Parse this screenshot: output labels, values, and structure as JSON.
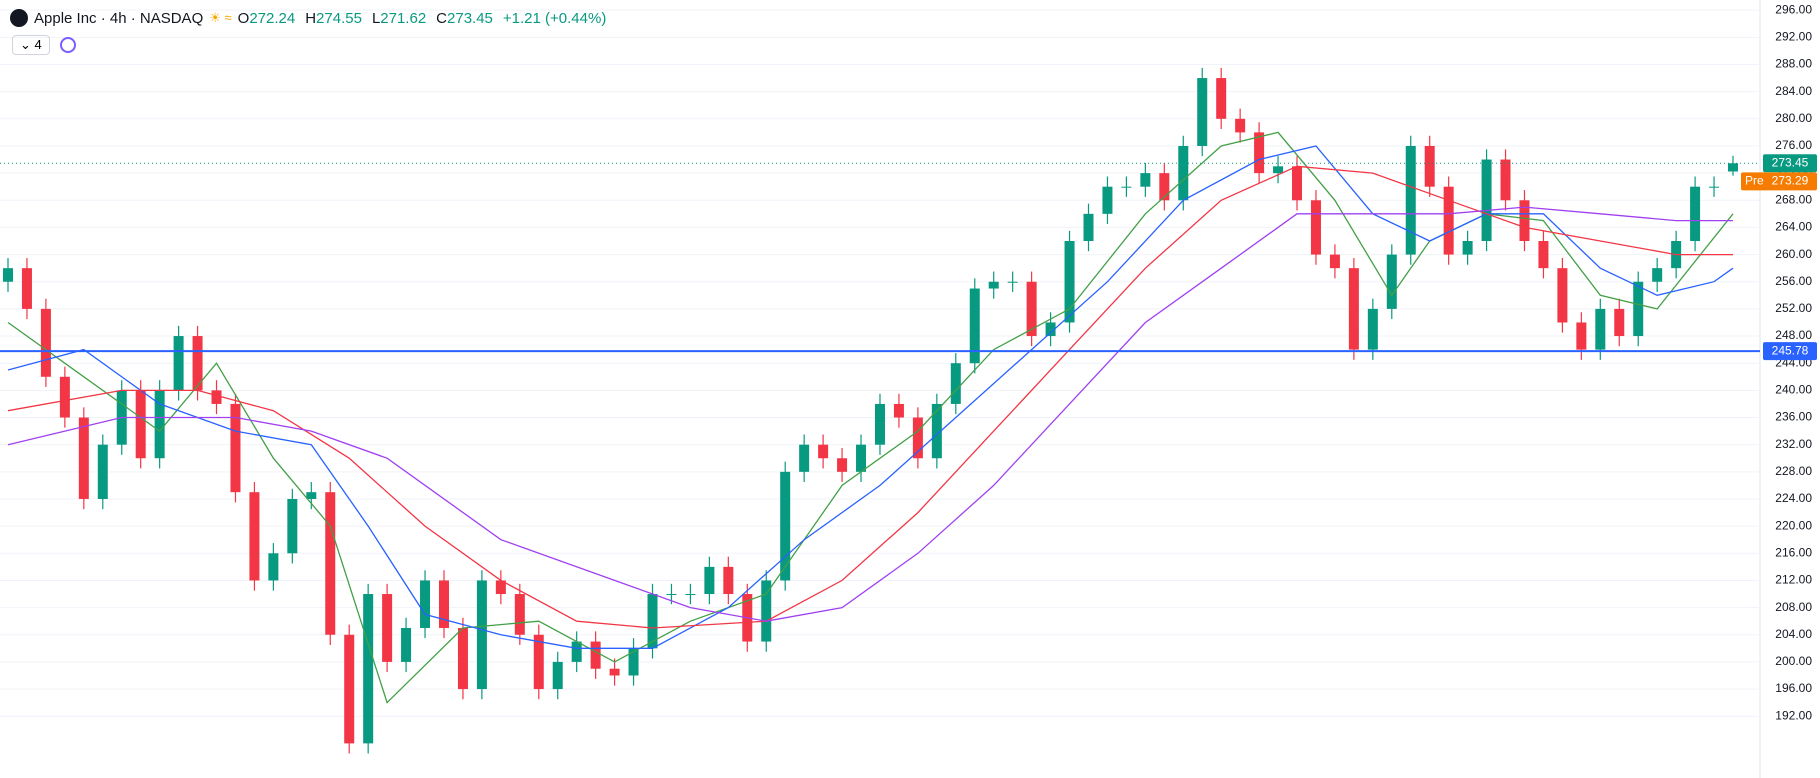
{
  "chart_data": {
    "type": "candlestick",
    "title": "Apple Inc · 4h · NASDAQ",
    "ohlc_labels": [
      "O",
      "H",
      "L",
      "C"
    ],
    "change": "+1.21 (+0.44%)",
    "indicator_count": "4",
    "up_color": "#089981",
    "down_color": "#f23645",
    "open": [
      256,
      258,
      252,
      242,
      236,
      224,
      232,
      240,
      230,
      240,
      248,
      240,
      238,
      225,
      212,
      216,
      224,
      225,
      204,
      188,
      210,
      200,
      205,
      212,
      205,
      196,
      212,
      210,
      204,
      196,
      200,
      203,
      199,
      198,
      202,
      210,
      210,
      210,
      214,
      210,
      203,
      212,
      228,
      232,
      230,
      228,
      232,
      238,
      236,
      230,
      238,
      244,
      255,
      256,
      256,
      248,
      250,
      262,
      266,
      270,
      270,
      272,
      268,
      276,
      286,
      280,
      278,
      272,
      273,
      268,
      260,
      258,
      246,
      252,
      260,
      276,
      270,
      260,
      262,
      274,
      268,
      262,
      258,
      250,
      246,
      252,
      248,
      256,
      258,
      262,
      270,
      272.24
    ],
    "high": [
      259.5,
      259.5,
      253.5,
      243.5,
      237.5,
      233.5,
      241.5,
      241.5,
      241.5,
      249.5,
      249.5,
      241.5,
      239.5,
      226.5,
      217.5,
      225.5,
      226.5,
      226.5,
      205.5,
      211.5,
      211.5,
      206.5,
      213.5,
      213.5,
      206.5,
      213.5,
      213.5,
      211.5,
      205.5,
      201.5,
      204.5,
      204.5,
      200.5,
      203.5,
      211.5,
      211.5,
      211.5,
      215.5,
      215.5,
      211.5,
      213.5,
      229.5,
      233.5,
      233.5,
      231.5,
      233.5,
      239.5,
      239.5,
      237.5,
      239.5,
      245.5,
      256.5,
      257.5,
      257.5,
      257.5,
      251.5,
      263.5,
      267.5,
      271.5,
      271.5,
      273.5,
      273.5,
      277.5,
      287.5,
      287.5,
      281.5,
      279.5,
      274.5,
      274.5,
      269.5,
      261.5,
      259.5,
      253.5,
      261.5,
      277.5,
      277.5,
      271.5,
      263.5,
      275.5,
      275.5,
      269.5,
      263.5,
      259.5,
      251.5,
      253.5,
      253.5,
      257.5,
      259.5,
      263.5,
      271.5,
      271.5,
      274.55
    ],
    "low": [
      254.5,
      250.5,
      240.5,
      234.5,
      222.5,
      222.5,
      230.5,
      228.5,
      228.5,
      238.5,
      238.5,
      236.5,
      223.5,
      210.5,
      210.5,
      214.5,
      222.5,
      202.5,
      186.5,
      186.5,
      198.5,
      198.5,
      203.5,
      203.5,
      194.5,
      194.5,
      208.5,
      202.5,
      194.5,
      194.5,
      198.5,
      197.5,
      196.5,
      196.5,
      200.5,
      208.5,
      208.5,
      208.5,
      208.5,
      201.5,
      201.5,
      210.5,
      226.5,
      228.5,
      226.5,
      226.5,
      230.5,
      234.5,
      228.5,
      228.5,
      236.5,
      242.5,
      253.5,
      254.5,
      246.5,
      246.5,
      248.5,
      260.5,
      264.5,
      268.5,
      268.5,
      266.5,
      266.5,
      274.5,
      278.5,
      276.5,
      270.5,
      270.5,
      266.5,
      258.5,
      256.5,
      244.5,
      244.5,
      250.5,
      258.5,
      268.5,
      258.5,
      258.5,
      260.5,
      266.5,
      260.5,
      256.5,
      248.5,
      244.5,
      244.5,
      246.5,
      246.5,
      254.5,
      256.5,
      260.5,
      268.5,
      271.62
    ],
    "close": [
      258,
      252,
      242,
      236,
      224,
      232,
      240,
      230,
      240,
      248,
      240,
      238,
      225,
      212,
      216,
      224,
      225,
      204,
      188,
      210,
      200,
      205,
      212,
      205,
      196,
      212,
      210,
      204,
      196,
      200,
      203,
      199,
      198,
      202,
      210,
      210,
      210,
      214,
      210,
      203,
      212,
      228,
      232,
      230,
      228,
      232,
      238,
      236,
      230,
      238,
      244,
      255,
      256,
      256,
      248,
      250,
      262,
      266,
      270,
      270,
      272,
      268,
      276,
      286,
      280,
      278,
      272,
      273,
      268,
      260,
      258,
      246,
      252,
      260,
      276,
      270,
      260,
      262,
      274,
      268,
      262,
      258,
      250,
      246,
      252,
      248,
      256,
      258,
      262,
      270,
      270,
      273.45
    ],
    "series": [
      {
        "color": "#43a047",
        "x": [
          0,
          4,
          8,
          11,
          14,
          17,
          20,
          24,
          28,
          32,
          36,
          40,
          44,
          48,
          52,
          56,
          60,
          64,
          67,
          70,
          73,
          75,
          78,
          81,
          84,
          87,
          91
        ],
        "values": [
          250,
          242,
          234,
          244,
          230,
          220,
          194,
          205,
          206,
          200,
          206,
          210,
          226,
          234,
          246,
          252,
          266,
          276,
          278,
          268,
          254,
          262,
          266,
          265,
          254,
          252,
          266
        ]
      },
      {
        "color": "#2962ff",
        "x": [
          0,
          4,
          8,
          12,
          16,
          19,
          22,
          26,
          30,
          34,
          38,
          42,
          46,
          50,
          54,
          58,
          62,
          66,
          69,
          72,
          75,
          78,
          81,
          84,
          87,
          90,
          91
        ],
        "values": [
          243,
          246,
          238,
          234,
          232,
          220,
          207,
          204,
          202,
          202,
          208,
          218,
          226,
          236,
          246,
          256,
          268,
          274,
          276,
          266,
          262,
          266,
          266,
          258,
          254,
          256,
          258
        ]
      },
      {
        "color": "#f23645",
        "x": [
          0,
          6,
          10,
          14,
          18,
          22,
          26,
          30,
          34,
          40,
          44,
          48,
          52,
          56,
          60,
          64,
          68,
          72,
          76,
          80,
          84,
          88,
          91
        ],
        "values": [
          237,
          240,
          240,
          237,
          230,
          220,
          212,
          206,
          205,
          206,
          212,
          222,
          234,
          246,
          258,
          268,
          273,
          272,
          268,
          264,
          262,
          260,
          260
        ]
      },
      {
        "color": "#a040f0",
        "x": [
          0,
          6,
          12,
          16,
          20,
          26,
          32,
          36,
          40,
          44,
          48,
          52,
          56,
          60,
          64,
          68,
          72,
          76,
          80,
          84,
          88,
          91
        ],
        "values": [
          232,
          236,
          236,
          234,
          230,
          218,
          212,
          208,
          206,
          208,
          216,
          226,
          238,
          250,
          258,
          266,
          266,
          266,
          267,
          266,
          265,
          265
        ]
      }
    ],
    "premarket": {
      "label": "Pre",
      "value": 273.29,
      "color": "#f57c00"
    },
    "hline": {
      "value": 245.78,
      "color": "#2962ff"
    },
    "ylim": [
      182.9,
      297.5
    ],
    "yticks": [
      {
        "value": 192,
        "label": "192.00"
      },
      {
        "value": 196,
        "label": "196.00"
      },
      {
        "value": 200,
        "label": "200.00"
      },
      {
        "value": 204,
        "label": "204.00"
      },
      {
        "value": 208,
        "label": "208.00"
      },
      {
        "value": 212,
        "label": "212.00"
      },
      {
        "value": 216,
        "label": "216.00"
      },
      {
        "value": 220,
        "label": "220.00"
      },
      {
        "value": 224,
        "label": "224.00"
      },
      {
        "value": 228,
        "label": "228.00"
      },
      {
        "value": 232,
        "label": "232.00"
      },
      {
        "value": 236,
        "label": "236.00"
      },
      {
        "value": 240,
        "label": "240.00"
      },
      {
        "value": 244,
        "label": "244.00"
      },
      {
        "value": 248,
        "label": "248.00"
      },
      {
        "value": 252,
        "label": "252.00"
      },
      {
        "value": 256,
        "label": "256.00"
      },
      {
        "value": 260,
        "label": "260.00"
      },
      {
        "value": 264,
        "label": "264.00"
      },
      {
        "value": 268,
        "label": "268.00"
      },
      {
        "value": 272,
        "label": "272.00"
      },
      {
        "value": 276,
        "label": "276.00"
      },
      {
        "value": 280,
        "label": "280.00"
      },
      {
        "value": 284,
        "label": "284.00"
      },
      {
        "value": 288,
        "label": "288.00"
      },
      {
        "value": 292,
        "label": "292.00"
      },
      {
        "value": 296,
        "label": "296.00"
      }
    ],
    "grid": true
  }
}
